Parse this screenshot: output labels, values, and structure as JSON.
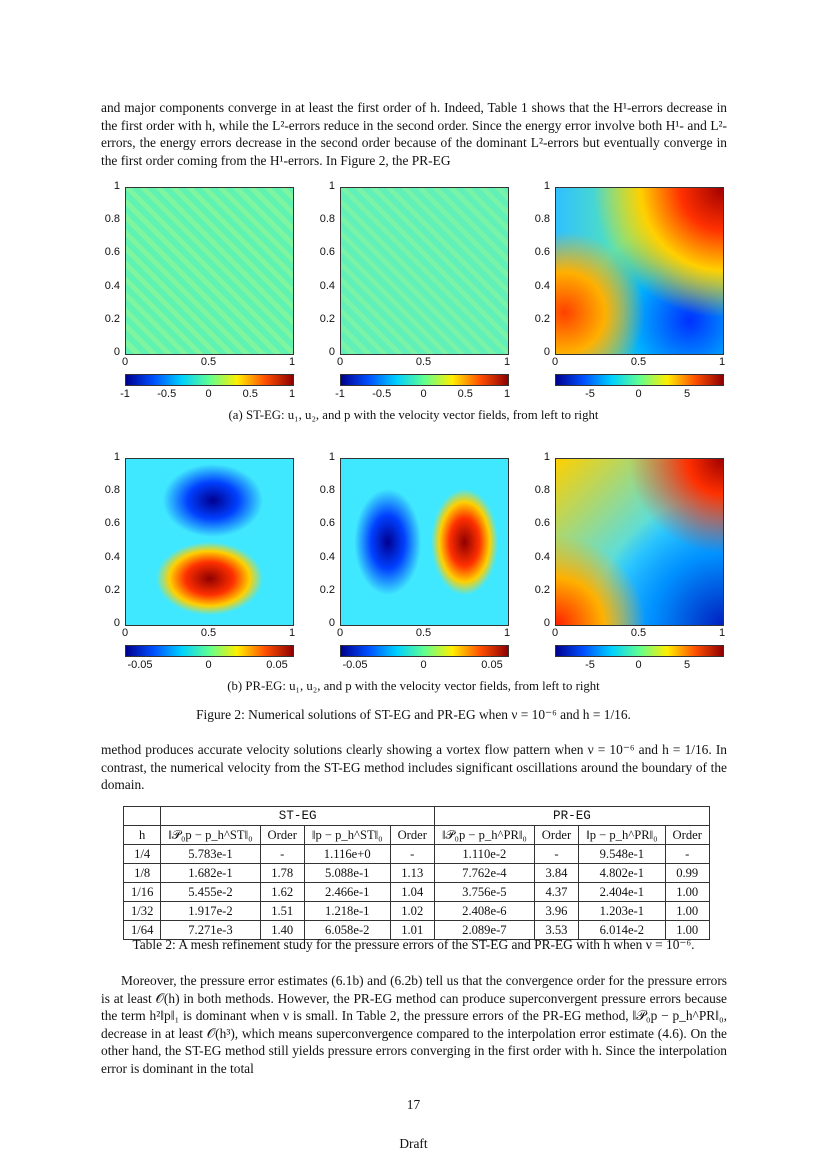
{
  "paragraphs": [
    "and major components converge in at least the first order of h. Indeed, Table 1 shows that the H¹-errors decrease in the first order with h, while the L²-errors reduce in the second order. Since the energy error involve both H¹- and L²-errors, the energy errors decrease in the second order because of the dominant L²-errors but eventually converge in the first order coming from the H¹-errors. In Figure 2, the PR-EG",
    "method produces accurate velocity solutions clearly showing a vortex flow pattern when ν = 10⁻⁶ and h = 1/16. In contrast, the numerical velocity from the ST-EG method includes significant oscillations around the boundary of the domain.",
    "Moreover, the pressure error estimates (6.1b) and (6.2b) tell us that the convergence order for the pressure errors is at least 𝒪(h) in both methods. However, the PR-EG method can produce superconvergent pressure errors because the term h²‖p‖₁ is dominant when ν is small. In Table 2, the pressure errors of the PR-EG method, ‖𝒫₀p − p_h^PR‖₀, decrease in at least 𝒪(h³), which means superconvergence compared to the interpolation error estimate (4.6). On the other hand, the ST-EG method still yields pressure errors converging in the first order with h. Since the interpolation error is dominant in the total"
  ],
  "figure": {
    "subfigures": [
      {
        "caption": "(a) ST-EG: u₁, u₂, and p with the velocity vector fields, from left to right",
        "panels": [
          {
            "xticks": [
              "0",
              "0.5",
              "1"
            ],
            "yticks": [
              "0",
              "0.2",
              "0.4",
              "0.6",
              "0.8",
              "1"
            ],
            "cbar_ticks": [
              "-1",
              "-0.5",
              "0",
              "0.5",
              "1"
            ]
          },
          {
            "xticks": [
              "0",
              "0.5",
              "1"
            ],
            "yticks": [
              "0",
              "0.2",
              "0.4",
              "0.6",
              "0.8",
              "1"
            ],
            "cbar_ticks": [
              "-1",
              "-0.5",
              "0",
              "0.5",
              "1"
            ]
          },
          {
            "xticks": [
              "0",
              "0.5",
              "1"
            ],
            "yticks": [
              "0",
              "0.2",
              "0.4",
              "0.6",
              "0.8",
              "1"
            ],
            "cbar_ticks": [
              "-5",
              "0",
              "5"
            ]
          }
        ]
      },
      {
        "caption": "(b) PR-EG: u₁, u₂, and p with the velocity vector fields, from left to right",
        "panels": [
          {
            "xticks": [
              "0",
              "0.5",
              "1"
            ],
            "yticks": [
              "0",
              "0.2",
              "0.4",
              "0.6",
              "0.8",
              "1"
            ],
            "cbar_ticks": [
              "-0.05",
              "0",
              "0.05"
            ]
          },
          {
            "xticks": [
              "0",
              "0.5",
              "1"
            ],
            "yticks": [
              "0",
              "0.2",
              "0.4",
              "0.6",
              "0.8",
              "1"
            ],
            "cbar_ticks": [
              "-0.05",
              "0",
              "0.05"
            ]
          },
          {
            "xticks": [
              "0",
              "0.5",
              "1"
            ],
            "yticks": [
              "0",
              "0.2",
              "0.4",
              "0.6",
              "0.8",
              "1"
            ],
            "cbar_ticks": [
              "-5",
              "0",
              "5"
            ]
          }
        ]
      }
    ],
    "caption": "Figure 2: Numerical solutions of ST-EG and PR-EG when ν = 10⁻⁶ and h = 1/16."
  },
  "table": {
    "groups": [
      "ST-EG",
      "PR-EG"
    ],
    "header": [
      "h",
      "‖𝒫₀p − p_h^ST‖₀",
      "Order",
      "‖p − p_h^ST‖₀",
      "Order",
      "‖𝒫₀p − p_h^PR‖₀",
      "Order",
      "‖p − p_h^PR‖₀",
      "Order"
    ],
    "rows": [
      [
        "1/4",
        "5.783e-1",
        "-",
        "1.116e+0",
        "-",
        "1.110e-2",
        "-",
        "9.548e-1",
        "-"
      ],
      [
        "1/8",
        "1.682e-1",
        "1.78",
        "5.088e-1",
        "1.13",
        "7.762e-4",
        "3.84",
        "4.802e-1",
        "0.99"
      ],
      [
        "1/16",
        "5.455e-2",
        "1.62",
        "2.466e-1",
        "1.04",
        "3.756e-5",
        "4.37",
        "2.404e-1",
        "1.00"
      ],
      [
        "1/32",
        "1.917e-2",
        "1.51",
        "1.218e-1",
        "1.02",
        "2.408e-6",
        "3.96",
        "1.203e-1",
        "1.00"
      ],
      [
        "1/64",
        "7.271e-3",
        "1.40",
        "6.058e-2",
        "1.01",
        "2.089e-7",
        "3.53",
        "6.014e-2",
        "1.00"
      ]
    ],
    "caption": "Table 2: A mesh refinement study for the pressure errors of the ST-EG and PR-EG with h when ν = 10⁻⁶."
  },
  "footer": {
    "page": "17",
    "status": "Draft"
  }
}
